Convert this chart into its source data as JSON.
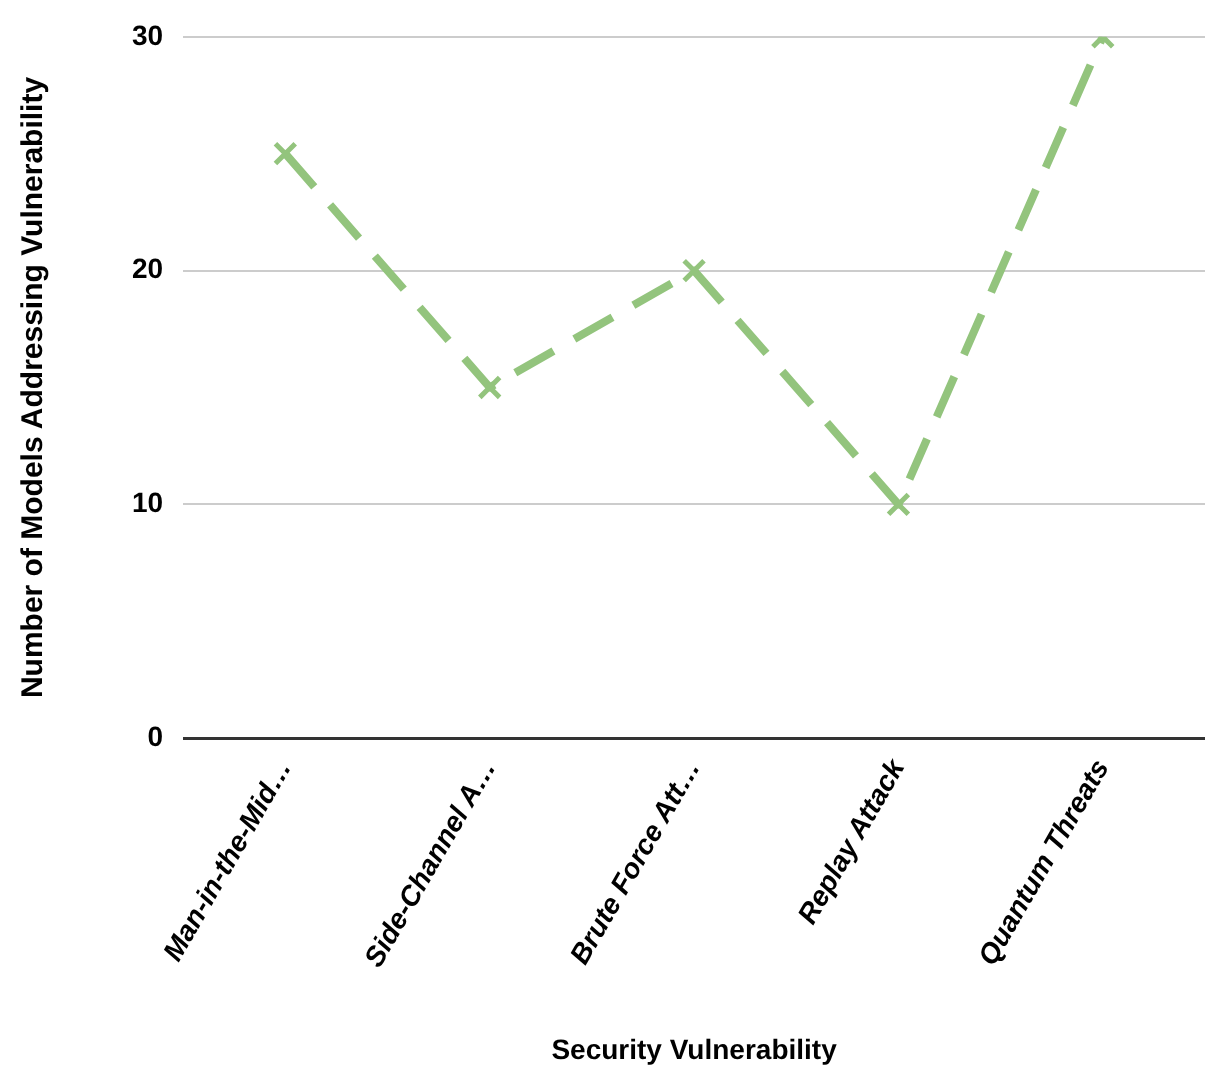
{
  "chart_data": {
    "type": "line",
    "xlabel": "Security Vulnerability",
    "ylabel": "Number of Models Addressing Vulnerability",
    "categories": [
      "Man-in-the-Mid…",
      "Side-Channel A…",
      "Brute Force Att…",
      "Replay Attack",
      "Quantum Threats"
    ],
    "series": [
      {
        "color": "#93c47d",
        "values": [
          25,
          15,
          20,
          10,
          30
        ]
      }
    ],
    "ylim": [
      0,
      30
    ],
    "yticks": [
      0,
      10,
      20,
      30
    ],
    "grid": "y",
    "legend": false,
    "marker": "cross",
    "line_style": "dashed"
  }
}
